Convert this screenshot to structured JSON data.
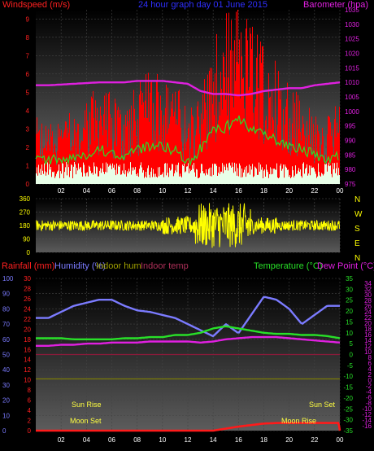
{
  "chart_data": [
    {
      "type": "bar",
      "title": "24 hour graph day 01 June 2015",
      "left_axis_title": "Windspeed (m/s)",
      "right_axis_title": "Barometer (hpa)",
      "x_ticks": [
        "02",
        "04",
        "06",
        "08",
        "10",
        "12",
        "14",
        "16",
        "18",
        "20",
        "22",
        "00"
      ],
      "left_ticks": [
        0,
        1,
        2,
        3,
        4,
        5,
        6,
        7,
        8,
        9
      ],
      "right_ticks": [
        975,
        980,
        985,
        990,
        995,
        1000,
        1005,
        1010,
        1015,
        1020,
        1025,
        1030,
        1035
      ],
      "ylim_left": [
        0,
        9.5
      ],
      "ylim_right": [
        975,
        1035
      ],
      "series": [
        {
          "name": "gust",
          "hours": [
            1,
            3,
            5,
            7,
            8,
            9,
            10,
            11,
            12,
            13,
            14,
            15,
            16,
            17,
            18,
            19,
            20,
            21,
            22,
            23,
            24
          ],
          "values": [
            2.8,
            3.2,
            4.2,
            3.4,
            4.3,
            4.8,
            5.0,
            4.5,
            3.0,
            4.2,
            6.0,
            7.2,
            8.0,
            6.8,
            6.2,
            5.3,
            4.5,
            3.8,
            3.0,
            2.8,
            4.0
          ]
        },
        {
          "name": "average",
          "hours": [
            1,
            3,
            5,
            7,
            8,
            9,
            10,
            11,
            12,
            13,
            14,
            15,
            16,
            17,
            18,
            19,
            20,
            21,
            22,
            23,
            24
          ],
          "values": [
            1.3,
            1.4,
            1.9,
            1.5,
            1.8,
            2.1,
            2.1,
            1.8,
            1.2,
            1.9,
            2.9,
            3.1,
            3.5,
            3.0,
            2.7,
            2.4,
            2.1,
            1.9,
            1.6,
            1.4,
            1.6
          ]
        },
        {
          "name": "barometer",
          "hours": [
            1,
            3,
            5,
            7,
            8,
            9,
            10,
            11,
            12,
            13,
            14,
            15,
            16,
            17,
            18,
            19,
            20,
            21,
            22,
            23,
            24
          ],
          "values": [
            1009,
            1009.5,
            1010,
            1010,
            1010.5,
            1010.5,
            1010.5,
            1010,
            1009.5,
            1007,
            1006,
            1006,
            1005.5,
            1006,
            1007,
            1007.5,
            1008,
            1008,
            1009,
            1009.5,
            1010
          ]
        }
      ]
    },
    {
      "type": "scatter",
      "series_label": "wind direction",
      "y_ticks": [
        0,
        90,
        180,
        270,
        360
      ],
      "compass": [
        "N",
        "W",
        "S",
        "E",
        "N"
      ],
      "x_ticks": [
        "02",
        "04",
        "06",
        "08",
        "10",
        "12",
        "14",
        "16",
        "18",
        "20",
        "22",
        "00"
      ],
      "ylim": [
        0,
        360
      ],
      "base_direction": 180
    },
    {
      "type": "line",
      "labels": {
        "rain": "Rainfall (mm)",
        "humidity": "Humidity (%)",
        "indoor_hum": "Indoor hum",
        "indoor_temp": "Indoor temp",
        "temperature": "Temperature (°C)",
        "dew_point": "Dew Point (°C)"
      },
      "annotations": {
        "sun_rise": "Sun Rise",
        "sun_set": "Sun Set",
        "moon_set": "Moon Set",
        "moon_rise": "Moon Rise"
      },
      "x_ticks": [
        "02",
        "04",
        "06",
        "08",
        "10",
        "12",
        "14",
        "16",
        "18",
        "20",
        "22",
        "00"
      ],
      "humidity_ticks": [
        0,
        10,
        20,
        30,
        40,
        50,
        60,
        70,
        80,
        90,
        100
      ],
      "rain_ticks": [
        0,
        2,
        4,
        6,
        8,
        10,
        12,
        14,
        16,
        18,
        20,
        22,
        24,
        26,
        28,
        30
      ],
      "temp_ticks": [
        -35,
        -30,
        -25,
        -20,
        -15,
        -10,
        -5,
        0,
        5,
        10,
        15,
        20,
        25,
        30,
        35
      ],
      "dew_ticks": [
        -16,
        -14,
        -12,
        -10,
        -8,
        -6,
        -4,
        -2,
        0,
        2,
        4,
        6,
        8,
        10,
        12,
        14,
        16,
        18,
        20,
        22,
        24,
        26,
        28,
        30,
        32,
        34
      ],
      "ylim_humidity": [
        0,
        100
      ],
      "ylim_temp": [
        -35,
        35
      ],
      "series": [
        {
          "name": "humidity",
          "hours": [
            1,
            2,
            3,
            4,
            5,
            6,
            7,
            8,
            9,
            10,
            11,
            12,
            13,
            14,
            15,
            16,
            17,
            18,
            19,
            20,
            21,
            22,
            23,
            24
          ],
          "values": [
            74,
            78,
            82,
            84,
            86,
            86,
            82,
            79,
            78,
            76,
            74,
            70,
            66,
            62,
            70,
            64,
            76,
            88,
            86,
            80,
            70,
            76,
            82,
            82
          ]
        },
        {
          "name": "temperature",
          "hours": [
            1,
            2,
            3,
            4,
            5,
            6,
            7,
            8,
            9,
            10,
            11,
            12,
            13,
            14,
            15,
            16,
            17,
            18,
            19,
            20,
            21,
            22,
            23,
            24
          ],
          "values": [
            7.5,
            7.5,
            7,
            7,
            7,
            7,
            7.5,
            7.5,
            8,
            8,
            9,
            9,
            10,
            12,
            13,
            12,
            11,
            10,
            9.5,
            9.5,
            9,
            9,
            8.5,
            7.5
          ]
        },
        {
          "name": "dew_point",
          "hours": [
            1,
            2,
            3,
            4,
            5,
            6,
            7,
            8,
            9,
            10,
            11,
            12,
            13,
            14,
            15,
            16,
            17,
            18,
            19,
            20,
            21,
            22,
            23,
            24
          ],
          "values": [
            4,
            4.5,
            4.5,
            5,
            5,
            5.5,
            5.5,
            5.5,
            6,
            6,
            6,
            6,
            5.5,
            6,
            7,
            7.5,
            8,
            8,
            8,
            7.5,
            7,
            6.5,
            6,
            5.5
          ]
        },
        {
          "name": "rain",
          "hours": [
            1,
            12,
            14,
            15,
            16,
            17,
            18,
            19,
            20,
            21,
            22,
            23,
            23.9,
            24
          ],
          "values": [
            0,
            0,
            0,
            0.4,
            0.8,
            1.1,
            1.4,
            1.5,
            1.5,
            1.5,
            1.5,
            1.5,
            1.5,
            0
          ]
        }
      ],
      "indoor_hum_level": 34,
      "indoor_temp_level": 0
    }
  ]
}
